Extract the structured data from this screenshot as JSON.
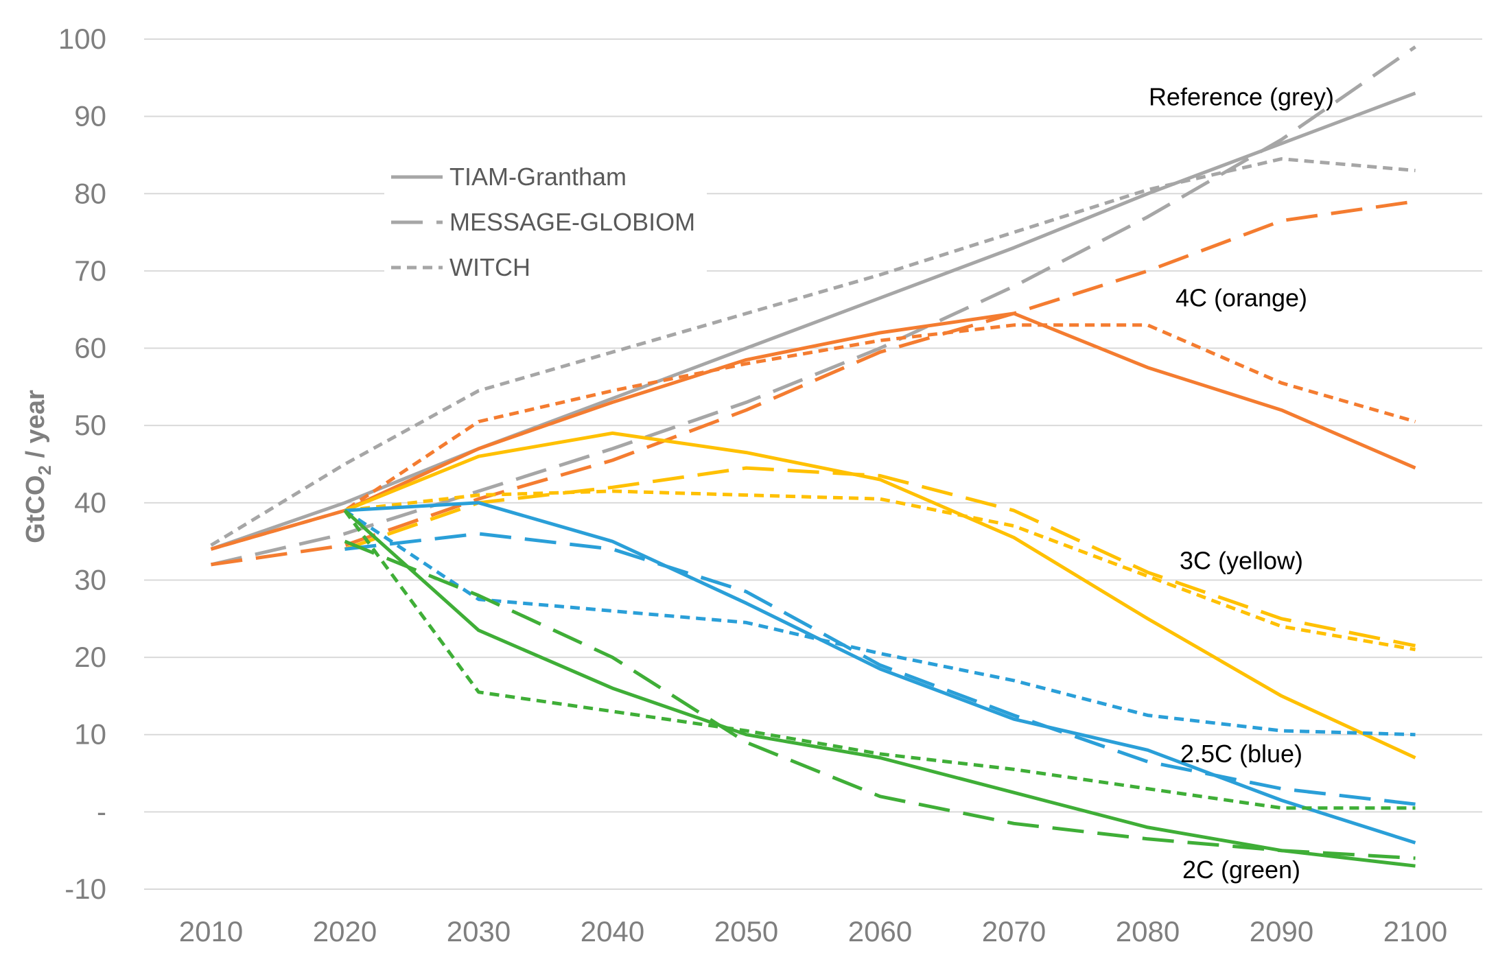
{
  "chart_data": {
    "type": "line",
    "title": "",
    "xlabel": "",
    "ylabel": "GtCO",
    "ylabel_subscript": "2",
    "ylabel_suffix": " / year",
    "x": [
      2010,
      2020,
      2030,
      2040,
      2050,
      2060,
      2070,
      2080,
      2090,
      2100
    ],
    "xlim": [
      2005,
      2105
    ],
    "ylim": [
      -10,
      100
    ],
    "yticks": [
      -10,
      0,
      10,
      20,
      30,
      40,
      50,
      60,
      70,
      80,
      90,
      100
    ],
    "ytick_labels": [
      "-10",
      "-",
      "10",
      "20",
      "30",
      "40",
      "50",
      "60",
      "70",
      "80",
      "90",
      "100"
    ],
    "grid": true,
    "legend": {
      "placement": "upper-left",
      "entries": [
        {
          "label": "TIAM-Grantham",
          "style": "solid"
        },
        {
          "label": "MESSAGE-GLOBIOM",
          "style": "long-dash"
        },
        {
          "label": "WITCH",
          "style": "short-dash"
        }
      ]
    },
    "colors": {
      "reference": "#a6a6a6",
      "4c": "#f47c30",
      "3c": "#ffc000",
      "2_5c": "#2a9fd8",
      "2c": "#3fae37"
    },
    "annotations": [
      {
        "text": "Reference (grey)",
        "x": 2087,
        "y": 92.5
      },
      {
        "text": "4C (orange)",
        "x": 2087,
        "y": 66.5
      },
      {
        "text": "3C (yellow)",
        "x": 2087,
        "y": 32.5
      },
      {
        "text": "2.5C (blue)",
        "x": 2087,
        "y": 7.5
      },
      {
        "text": "2C (green)",
        "x": 2087,
        "y": -7.5
      }
    ],
    "series": [
      {
        "name": "Reference – TIAM-Grantham",
        "scenario": "reference",
        "model": "TIAM-Grantham",
        "style": "solid",
        "values": [
          34,
          40,
          47,
          53.5,
          60,
          66.5,
          73,
          80,
          86.5,
          93
        ]
      },
      {
        "name": "Reference – MESSAGE-GLOBIOM",
        "scenario": "reference",
        "model": "MESSAGE-GLOBIOM",
        "style": "long-dash",
        "values": [
          32,
          36,
          41.5,
          47,
          53,
          60,
          68,
          77,
          87,
          99
        ]
      },
      {
        "name": "Reference – WITCH",
        "scenario": "reference",
        "model": "WITCH",
        "style": "short-dash",
        "values": [
          34.5,
          45,
          54.5,
          59.5,
          64.5,
          69.5,
          75,
          80.5,
          84.5,
          83
        ]
      },
      {
        "name": "4C – TIAM-Grantham",
        "scenario": "4c",
        "model": "TIAM-Grantham",
        "style": "solid",
        "values": [
          34,
          39,
          47,
          53,
          58.5,
          62,
          64.5,
          57.5,
          52,
          44.5
        ]
      },
      {
        "name": "4C – MESSAGE-GLOBIOM",
        "scenario": "4c",
        "model": "MESSAGE-GLOBIOM",
        "style": "long-dash",
        "values": [
          32,
          34.5,
          40.5,
          45.5,
          52,
          59.5,
          64.5,
          70,
          76.5,
          79
        ]
      },
      {
        "name": "4C – WITCH",
        "scenario": "4c",
        "model": "WITCH",
        "style": "short-dash",
        "values": [
          34,
          39,
          50.5,
          54.5,
          58,
          61,
          63,
          63,
          55.5,
          50.5
        ]
      },
      {
        "name": "3C – TIAM-Grantham",
        "scenario": "3c",
        "model": "TIAM-Grantham",
        "style": "solid",
        "values": [
          null,
          39,
          46,
          49,
          46.5,
          43,
          35.5,
          25,
          15,
          7
        ]
      },
      {
        "name": "3C – MESSAGE-GLOBIOM",
        "scenario": "3c",
        "model": "MESSAGE-GLOBIOM",
        "style": "long-dash",
        "values": [
          null,
          34,
          40,
          42,
          44.5,
          43.5,
          39,
          31,
          25,
          21.5
        ]
      },
      {
        "name": "3C – WITCH",
        "scenario": "3c",
        "model": "WITCH",
        "style": "short-dash",
        "values": [
          null,
          39,
          41,
          41.5,
          41,
          40.5,
          37,
          30.5,
          24,
          21
        ]
      },
      {
        "name": "2.5C – TIAM-Grantham",
        "scenario": "2_5c",
        "model": "TIAM-Grantham",
        "style": "solid",
        "values": [
          null,
          39,
          40,
          35,
          27,
          18.5,
          12,
          8,
          1.5,
          -4
        ]
      },
      {
        "name": "2.5C – MESSAGE-GLOBIOM",
        "scenario": "2_5c",
        "model": "MESSAGE-GLOBIOM",
        "style": "long-dash",
        "values": [
          null,
          34,
          36,
          34,
          28.5,
          19,
          12.5,
          6.5,
          3,
          1
        ]
      },
      {
        "name": "2.5C – WITCH",
        "scenario": "2_5c",
        "model": "WITCH",
        "style": "short-dash",
        "values": [
          null,
          39,
          27.5,
          26,
          24.5,
          20.5,
          17,
          12.5,
          10.5,
          10
        ]
      },
      {
        "name": "2C – TIAM-Grantham",
        "scenario": "2c",
        "model": "TIAM-Grantham",
        "style": "solid",
        "values": [
          null,
          39,
          23.5,
          16,
          10,
          7,
          2.5,
          -2,
          -5,
          -7
        ]
      },
      {
        "name": "2C – MESSAGE-GLOBIOM",
        "scenario": "2c",
        "model": "MESSAGE-GLOBIOM",
        "style": "long-dash",
        "values": [
          null,
          35,
          28,
          20,
          9,
          2,
          -1.5,
          -3.5,
          -5,
          -6
        ]
      },
      {
        "name": "2C – WITCH",
        "scenario": "2c",
        "model": "WITCH",
        "style": "short-dash",
        "values": [
          null,
          39,
          15.5,
          13,
          10.5,
          7.5,
          5.5,
          3,
          0.5,
          0.5
        ]
      }
    ]
  }
}
